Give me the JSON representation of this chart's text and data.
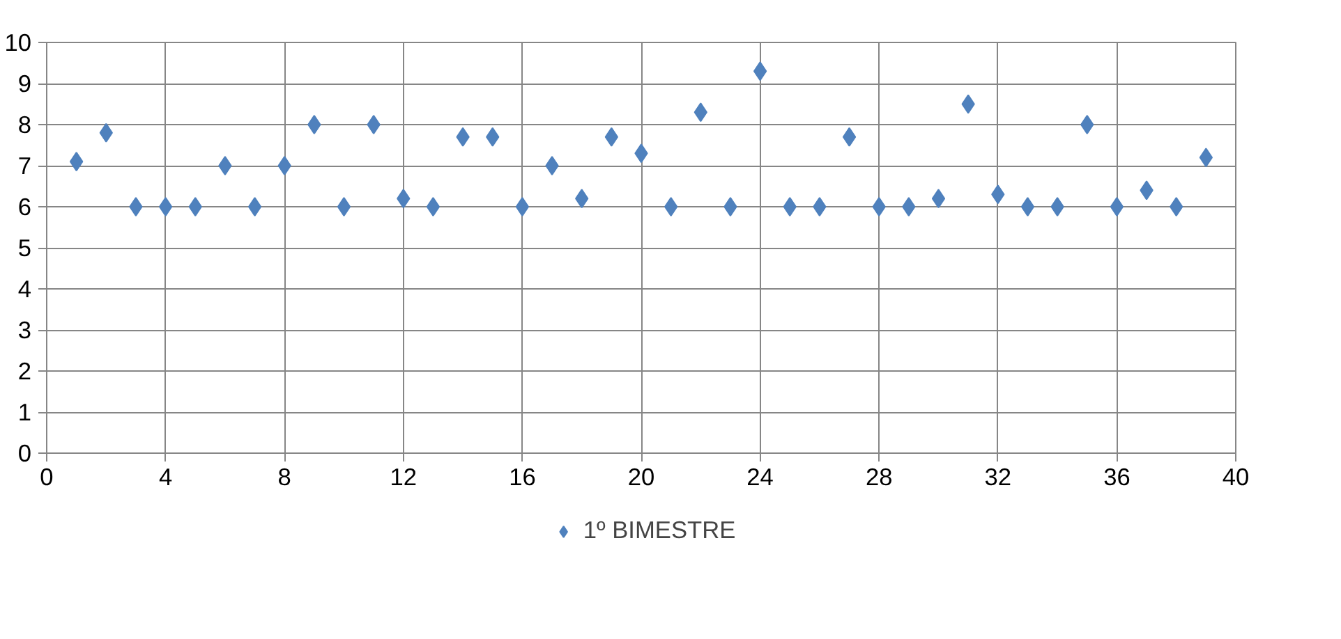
{
  "chart_data": {
    "type": "scatter",
    "x": [
      1,
      2,
      3,
      4,
      5,
      6,
      7,
      8,
      9,
      10,
      11,
      12,
      13,
      14,
      15,
      16,
      17,
      18,
      19,
      20,
      21,
      22,
      23,
      24,
      25,
      26,
      27,
      28,
      29,
      30,
      31,
      32,
      33,
      34,
      35,
      36,
      37,
      38,
      39
    ],
    "series": [
      {
        "name": "1º BIMESTRE",
        "color": "#4f81bd",
        "values": [
          7.1,
          7.8,
          6,
          6,
          6,
          7,
          6,
          7,
          8,
          6,
          8,
          6.2,
          6,
          7.7,
          7.7,
          6,
          7,
          6.2,
          7.7,
          7.3,
          6,
          8.3,
          6,
          9.3,
          6,
          6,
          7.7,
          6,
          6,
          6.2,
          8.5,
          6.3,
          6,
          6,
          8,
          6,
          6.4,
          6,
          7.2
        ]
      }
    ],
    "xlim": [
      0,
      40
    ],
    "xticks": [
      0,
      4,
      8,
      12,
      16,
      20,
      24,
      28,
      32,
      36,
      40
    ],
    "ylim": [
      0,
      10
    ],
    "yticks": [
      0,
      1,
      2,
      3,
      4,
      5,
      6,
      7,
      8,
      9,
      10
    ],
    "grid": true,
    "legend": "bottom",
    "marker": "diamond"
  }
}
